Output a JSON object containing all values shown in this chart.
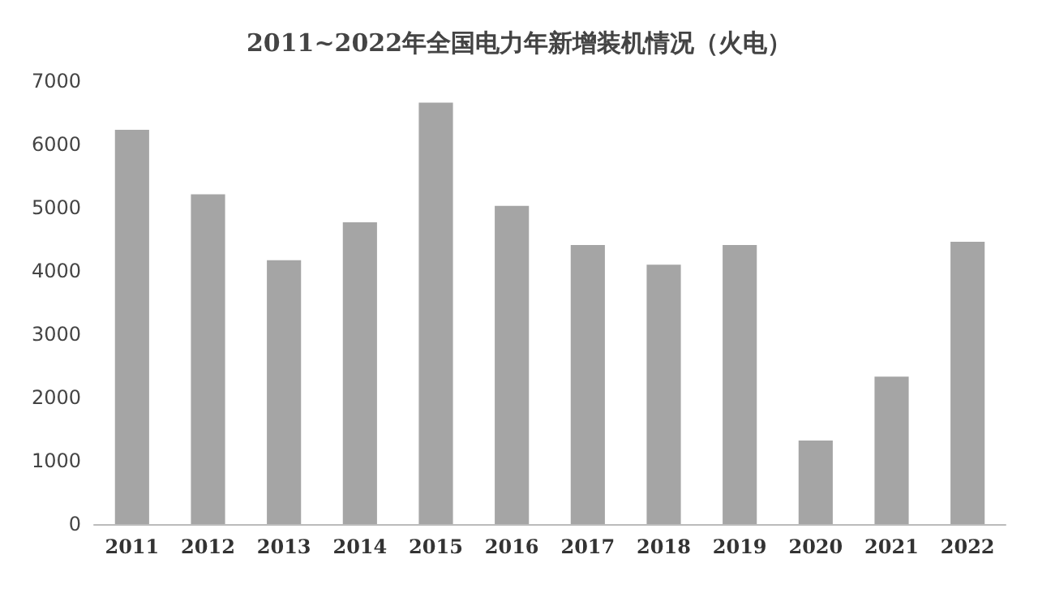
{
  "chart_data": {
    "type": "bar",
    "title": "2011~2022年全国电力年新增装机情况（火电）",
    "categories": [
      "2011",
      "2012",
      "2013",
      "2014",
      "2015",
      "2016",
      "2017",
      "2018",
      "2019",
      "2020",
      "2021",
      "2022"
    ],
    "values": [
      6230,
      5210,
      4170,
      4770,
      6660,
      5030,
      4410,
      4100,
      4410,
      1320,
      2330,
      4460
    ],
    "color": "#a5a5a5",
    "ylim": [
      0,
      7000
    ],
    "yticks": [
      0,
      1000,
      2000,
      3000,
      4000,
      5000,
      6000,
      7000
    ],
    "grid": false
  }
}
